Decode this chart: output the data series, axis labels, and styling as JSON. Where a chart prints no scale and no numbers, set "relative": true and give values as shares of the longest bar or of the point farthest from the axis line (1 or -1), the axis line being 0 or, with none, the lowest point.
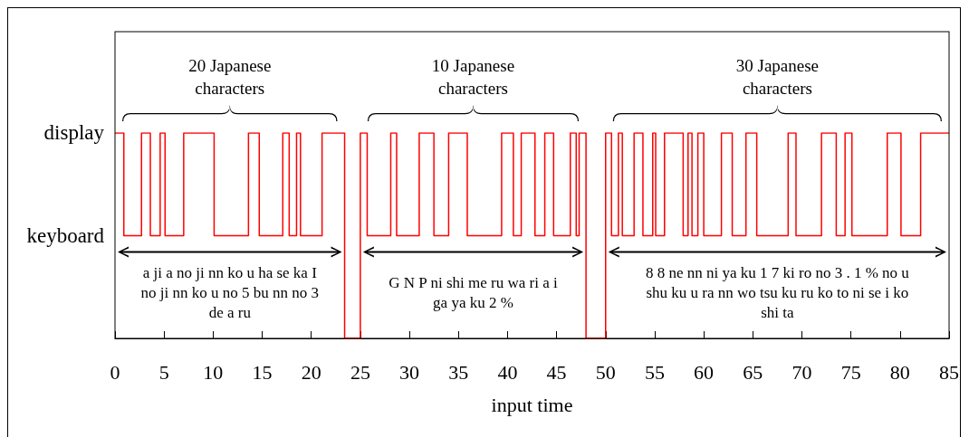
{
  "chart_data": {
    "type": "step",
    "xlabel": "input time",
    "relative": true,
    "x": [
      0,
      0.9,
      2.7,
      3.6,
      4.6,
      5.1,
      7,
      10.1,
      13.6,
      14.7,
      17.1,
      17.75,
      18.5,
      18.9,
      21.1,
      23.4,
      25,
      25.7,
      28.1,
      28.7,
      31,
      32.5,
      34,
      35.9,
      39.4,
      40.6,
      41.4,
      42.8,
      43.8,
      44.7,
      46.4,
      47,
      47.3,
      48,
      50,
      50.6,
      51.3,
      51.7,
      52.9,
      53.8,
      54.8,
      55.1,
      56,
      57.9,
      58.4,
      58.8,
      59.4,
      60,
      61.8,
      62.9,
      64.3,
      65.4,
      68.6,
      69.4,
      72,
      73.5,
      74.4,
      75.1,
      78.7,
      80.1,
      82.1,
      85
    ],
    "values": [
      1,
      0.5,
      1,
      0.5,
      1,
      0.5,
      1,
      0.5,
      1,
      0.5,
      1,
      0.5,
      1,
      0.5,
      1,
      0,
      1,
      0.5,
      1,
      0.5,
      1,
      0.5,
      1,
      0.5,
      1,
      0.5,
      1,
      0.5,
      1,
      0.5,
      1,
      0.5,
      1,
      0,
      1,
      0.5,
      1,
      0.5,
      1,
      0.5,
      1,
      0.5,
      1,
      0.5,
      1,
      0.5,
      1,
      0.5,
      1,
      0.5,
      1,
      0.5,
      1,
      0.5,
      1,
      0.5,
      1,
      0.5,
      1,
      0.5,
      1,
      1
    ],
    "color": "#ff0000",
    "xlim": [
      0,
      85
    ],
    "xticks": [
      0,
      5,
      10,
      15,
      20,
      25,
      30,
      35,
      40,
      45,
      50,
      55,
      60,
      65,
      70,
      75,
      80,
      85
    ],
    "grid": false,
    "marker": "none",
    "line_style": "solid",
    "annotations": [
      "display",
      "keyboard",
      "20 Japanese characters",
      "10 Japanese characters",
      "30 Japanese characters",
      "a ji a no ji nn ko u ha se ka I no ji nn ko u no 5 bu nn no 3 de a ru",
      "G N P ni shi me ru wa ri a i ga ya ku 2 %",
      "8 8 ne nn ni ya ku 1 7 ki ro no 3 . 1 % no u shu ku u ra nn wo tsu ku ru ko to ni se i ko shi ta"
    ]
  }
}
